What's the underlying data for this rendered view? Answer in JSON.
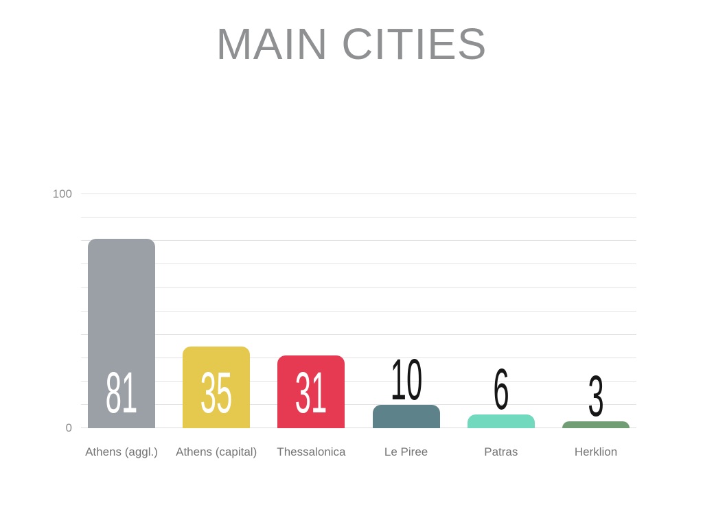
{
  "slide": {
    "background": "#ffffff"
  },
  "chart_data": {
    "type": "bar",
    "title": "MAIN CITIES",
    "categories": [
      "Athens (aggl.)",
      "Athens (capital)",
      "Thessalonica",
      "Le Piree",
      "Patras",
      "Herklion"
    ],
    "values": [
      81,
      35,
      31,
      10,
      6,
      3
    ],
    "value_labels": [
      "81",
      "35",
      "31",
      "10",
      "6",
      "3"
    ],
    "bar_colors": [
      "#9aa0a5",
      "#e5c84e",
      "#e63a53",
      "#5d8289",
      "#71d9bd",
      "#709d73"
    ],
    "value_label_placement": [
      "inside",
      "inside",
      "inside",
      "above",
      "above",
      "above"
    ],
    "value_label_color_inside": "#ffffff",
    "value_label_color_above": "#161616",
    "xlabel": "",
    "ylabel": "",
    "ylim": [
      0,
      100
    ],
    "grid": true,
    "gridline_step": 10,
    "y_ticks": [
      {
        "value": 100,
        "label": "100"
      },
      {
        "value": 0,
        "label": "0"
      }
    ],
    "legend_position": "none",
    "colors": {
      "title": "#8f9092",
      "gridline": "#e3e3e3",
      "baseline": "#dcdcdc",
      "axis_label": "#8d8d8d",
      "category_label": "#757575"
    }
  }
}
